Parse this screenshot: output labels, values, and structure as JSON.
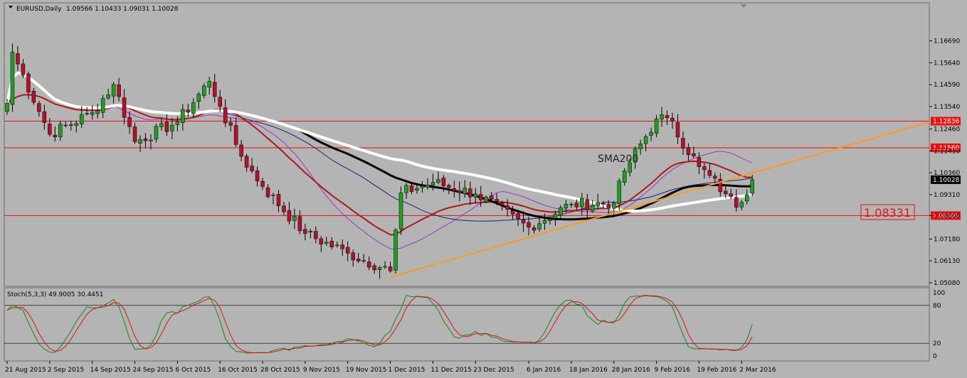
{
  "header": {
    "symbol_label": "EURUSD,Daily",
    "ohlc_label": "1.09566 1.10433 1.09031 1.10028"
  },
  "stoch_header": {
    "label": "Stoch(5,3,3) 49.9005 30.4451"
  },
  "annotation": {
    "sma_label": "SMA200",
    "price_tag": "1.08331"
  },
  "colors": {
    "background": "#b4b4b4",
    "bull_candle": "#1f9e22",
    "bear_candle": "#b8102a",
    "level_line": "#e81010",
    "trend_line": "#ff9a1f",
    "sma_white": "#ffffff",
    "sma_black": "#000000",
    "ma_red": "#b01818",
    "ma_navy": "#1c1f7a",
    "ma_violet": "#9b36c8",
    "stoch_main": "#118a11",
    "stoch_signal": "#e01010"
  },
  "chart_data": [
    {
      "type": "candlestick",
      "title": "EURUSD,Daily",
      "ylim": [
        1.0508,
        1.1739
      ],
      "y_ticks": [
        "1.16690",
        "1.15640",
        "1.14590",
        "1.13540",
        "1.12460",
        "1.11410",
        "1.10360",
        "1.09310",
        "1.08305",
        "1.07180",
        "1.06130",
        "1.05080"
      ],
      "x_ticks": [
        "21 Aug 2015",
        "2 Sep 2015",
        "14 Sep 2015",
        "24 Sep 2015",
        "6 Oct 2015",
        "16 Oct 2015",
        "28 Oct 2015",
        "9 Nov 2015",
        "19 Nov 2015",
        "1 Dec 2015",
        "11 Dec 2015",
        "23 Dec 2015",
        "6 Jan 2016",
        "18 Jan 2016",
        "28 Jan 2016",
        "9 Feb 2016",
        "19 Feb 2016",
        "2 Mar 2016"
      ],
      "current_price": {
        "value": 1.10028,
        "label": "1.10028"
      },
      "horizontal_levels": [
        {
          "value": 1.12836,
          "label": "1.12836"
        },
        {
          "value": 1.1156,
          "label": "1.11560"
        },
        {
          "value": 1.08305,
          "label": "1.08305"
        }
      ],
      "trendline": {
        "from": {
          "date": "1 Dec 2015",
          "price": 1.0535
        },
        "to": {
          "date": "2 Mar 2016",
          "price": 1.102
        }
      },
      "anchors": [
        {
          "date": "21 Aug 2015",
          "close": 1.137
        },
        {
          "date": "24 Aug 2015",
          "close": 1.1615
        },
        {
          "date": "2 Sep 2015",
          "close": 1.122
        },
        {
          "date": "14 Sep 2015",
          "close": 1.1325
        },
        {
          "date": "18 Sep 2015",
          "close": 1.146
        },
        {
          "date": "24 Sep 2015",
          "close": 1.1185
        },
        {
          "date": "6 Oct 2015",
          "close": 1.128
        },
        {
          "date": "14 Oct 2015",
          "close": 1.1475
        },
        {
          "date": "16 Oct 2015",
          "close": 1.1355
        },
        {
          "date": "22 Oct 2015",
          "close": 1.1115
        },
        {
          "date": "28 Oct 2015",
          "close": 1.097
        },
        {
          "date": "9 Nov 2015",
          "close": 1.0745
        },
        {
          "date": "19 Nov 2015",
          "close": 1.065
        },
        {
          "date": "1 Dec 2015",
          "close": 1.0565
        },
        {
          "date": "3 Dec 2015",
          "close": 1.094
        },
        {
          "date": "11 Dec 2015",
          "close": 1.099
        },
        {
          "date": "23 Dec 2015",
          "close": 1.0935
        },
        {
          "date": "6 Jan 2016",
          "close": 1.0775
        },
        {
          "date": "18 Jan 2016",
          "close": 1.0885
        },
        {
          "date": "28 Jan 2016",
          "close": 1.089
        },
        {
          "date": "1 Feb 2016",
          "close": 1.1045
        },
        {
          "date": "9 Feb 2016",
          "close": 1.1295
        },
        {
          "date": "11 Feb 2016",
          "close": 1.13
        },
        {
          "date": "19 Feb 2016",
          "close": 1.1065
        },
        {
          "date": "26 Feb 2016",
          "close": 1.0935
        },
        {
          "date": "1 Mar 2016",
          "close": 1.087
        },
        {
          "date": "4 Mar 2016",
          "close": 1.1003
        }
      ]
    },
    {
      "type": "line",
      "title": "Stoch(5,3,3) 49.9005 30.4451",
      "ylim": [
        0,
        100
      ],
      "y_ticks": [
        "100",
        "80",
        "20",
        "0"
      ],
      "levels": [
        80,
        20
      ],
      "current": {
        "main": 49.9005,
        "signal": 30.4451
      }
    }
  ]
}
